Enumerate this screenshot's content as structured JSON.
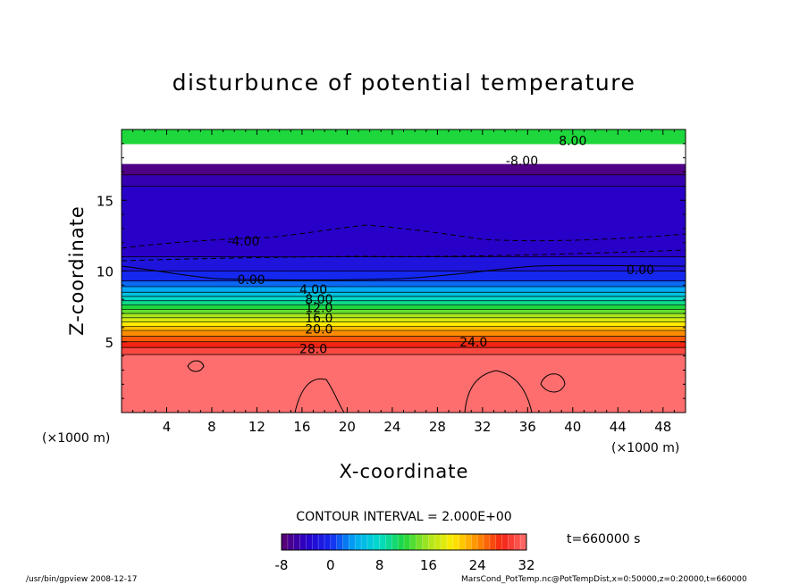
{
  "chart_data": {
    "type": "heatmap",
    "title": "disturbunce of potential temperature",
    "xlabel": "X-coordinate",
    "ylabel": "Z-coordinate",
    "x_unit_left": "(×1000 m)",
    "x_unit_right": "(×1000 m)",
    "xlim": [
      0,
      50
    ],
    "ylim": [
      0,
      20
    ],
    "x_ticks": [
      4,
      8,
      12,
      16,
      20,
      24,
      28,
      32,
      36,
      40,
      44,
      48
    ],
    "y_ticks": [
      5,
      10,
      15
    ],
    "bands": [
      {
        "z0": 0.0,
        "z1": 4.1,
        "value": 32
      },
      {
        "z0": 4.1,
        "z1": 4.6,
        "value": 30
      },
      {
        "z0": 4.6,
        "z1": 5.0,
        "value": 28
      },
      {
        "z0": 5.0,
        "z1": 5.4,
        "value": 26
      },
      {
        "z0": 5.4,
        "z1": 5.8,
        "value": 24
      },
      {
        "z0": 5.8,
        "z1": 6.1,
        "value": 22
      },
      {
        "z0": 6.1,
        "z1": 6.4,
        "value": 20
      },
      {
        "z0": 6.4,
        "z1": 6.7,
        "value": 18
      },
      {
        "z0": 6.7,
        "z1": 7.0,
        "value": 16
      },
      {
        "z0": 7.0,
        "z1": 7.3,
        "value": 14
      },
      {
        "z0": 7.3,
        "z1": 7.6,
        "value": 12
      },
      {
        "z0": 7.6,
        "z1": 7.9,
        "value": 10
      },
      {
        "z0": 7.9,
        "z1": 8.2,
        "value": 8
      },
      {
        "z0": 8.2,
        "z1": 8.5,
        "value": 6
      },
      {
        "z0": 8.5,
        "z1": 8.9,
        "value": 4
      },
      {
        "z0": 8.9,
        "z1": 9.3,
        "value": 2
      },
      {
        "z0": 9.3,
        "z1": 10.0,
        "value": 0
      },
      {
        "z0": 10.0,
        "z1": 11.0,
        "value": -2
      },
      {
        "z0": 11.0,
        "z1": 16.0,
        "value": -4
      },
      {
        "z0": 16.0,
        "z1": 16.8,
        "value": -5
      },
      {
        "z0": 16.8,
        "z1": 17.6,
        "value": -7
      },
      {
        "z0": 17.6,
        "z1": 19.0,
        "value": null
      },
      {
        "z0": 19.0,
        "z1": 20.0,
        "value": 12
      }
    ],
    "contour_labels": [
      {
        "text": "8.00",
        "x": 40.0,
        "z": 19.2
      },
      {
        "text": "-8.00",
        "x": 35.5,
        "z": 17.8
      },
      {
        "text": "-4.00",
        "x": 10.8,
        "z": 12.1
      },
      {
        "text": "0.00",
        "x": 11.5,
        "z": 9.4
      },
      {
        "text": "0.00",
        "x": 46.0,
        "z": 10.1
      },
      {
        "text": "4.00",
        "x": 17.0,
        "z": 8.7
      },
      {
        "text": "8.00",
        "x": 17.5,
        "z": 8.0
      },
      {
        "text": "12.0",
        "x": 17.5,
        "z": 7.4
      },
      {
        "text": "16.0",
        "x": 17.5,
        "z": 6.7
      },
      {
        "text": "20.0",
        "x": 17.5,
        "z": 5.9
      },
      {
        "text": "28.0",
        "x": 17.0,
        "z": 4.5
      },
      {
        "text": "24.0",
        "x": 31.2,
        "z": 5.0
      }
    ],
    "colorbar": {
      "min": -8,
      "max": 32,
      "ticks": [
        "-8",
        "0",
        "8",
        "16",
        "24",
        "32"
      ]
    }
  },
  "contour_interval": "CONTOUR INTERVAL = 2.000E+00",
  "time_label": "t=660000 s",
  "footer_left": "/usr/bin/gpview   2008-12-17",
  "footer_right": "MarsCond_PotTemp.nc@PotTempDist,x=0:50000,z=0:20000,t=660000"
}
